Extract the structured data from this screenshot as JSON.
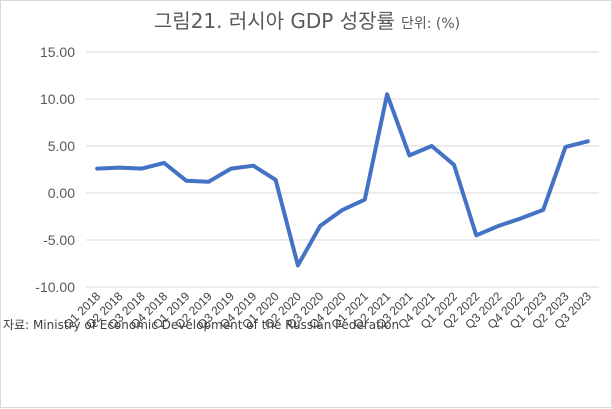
{
  "chart_data": {
    "type": "line",
    "title": "그림21. 러시아 GDP 성장률",
    "unit_label": "단위: (%)",
    "source": "자료: Ministry of Economic Development of the Russian Federation",
    "categories": [
      "Q1 2018",
      "Q2 2018",
      "Q3 2018",
      "Q4 2018",
      "Q1 2019",
      "Q2 2019",
      "Q3 2019",
      "Q4 2019",
      "Q1 2020",
      "Q2 2020",
      "Q3 2020",
      "Q4 2020",
      "Q1 2021",
      "Q2 2021",
      "Q3 2021",
      "Q4 2021",
      "Q1 2022",
      "Q2 2022",
      "Q3 2022",
      "Q4 2022",
      "Q1 2023",
      "Q2 2023",
      "Q3 2023"
    ],
    "series": [
      {
        "values": [
          2.6,
          2.7,
          2.6,
          3.2,
          1.3,
          1.2,
          2.6,
          2.9,
          1.4,
          -7.7,
          -3.5,
          -1.8,
          -0.7,
          10.5,
          4.0,
          5.0,
          3.0,
          -4.5,
          -3.5,
          -2.7,
          -1.8,
          4.9,
          5.5
        ],
        "color": "#4472C4"
      }
    ],
    "yticks": [
      "15.00",
      "10.00",
      "5.00",
      "0.00",
      "-5.00",
      "-10.00"
    ],
    "ylim": [
      -10,
      15
    ],
    "grid": true
  }
}
